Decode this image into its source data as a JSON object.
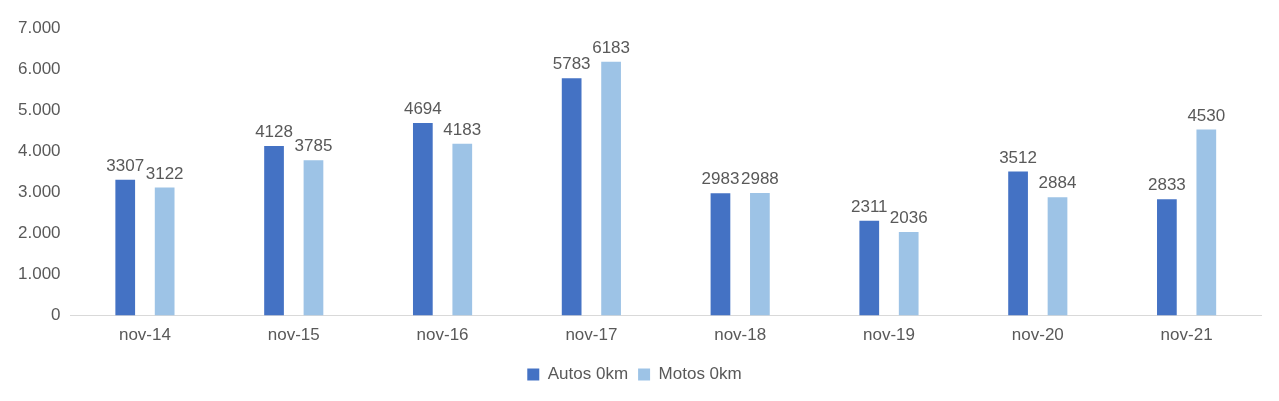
{
  "chart_data": {
    "type": "bar",
    "categories": [
      "nov-14",
      "nov-15",
      "nov-16",
      "nov-17",
      "nov-18",
      "nov-19",
      "nov-20",
      "nov-21"
    ],
    "series": [
      {
        "name": "Autos 0km",
        "color": "#4472c4",
        "values": [
          3307,
          4128,
          4694,
          5783,
          2983,
          2311,
          3512,
          2833
        ]
      },
      {
        "name": "Motos 0km",
        "color": "#9dc3e6",
        "values": [
          3122,
          3785,
          4183,
          6183,
          2988,
          2036,
          2884,
          4530
        ]
      }
    ],
    "ylim": [
      0,
      7000
    ],
    "yticks": [
      0,
      {
        "value": 1000,
        "label": "1.000"
      },
      {
        "value": 2000,
        "label": "2.000"
      },
      {
        "value": 3000,
        "label": "3.000"
      },
      {
        "value": 4000,
        "label": "4.000"
      },
      {
        "value": 5000,
        "label": "5.000"
      },
      {
        "value": 6000,
        "label": "6.000"
      },
      {
        "value": 7000,
        "label": "7.000"
      }
    ],
    "grid": false,
    "legend": "bottom",
    "data_labels": true
  }
}
